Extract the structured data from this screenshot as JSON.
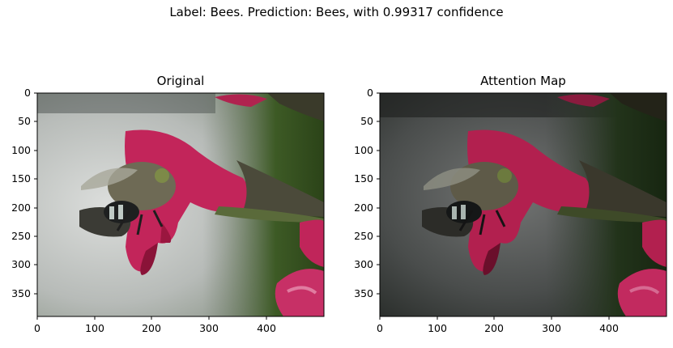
{
  "figure": {
    "suptitle": "Label: Bees. Prediction: Bees, with 0.99317 confidence"
  },
  "panels": [
    {
      "title": "Original",
      "x_ticks": [
        "0",
        "100",
        "200",
        "300",
        "400"
      ],
      "y_ticks": [
        "0",
        "50",
        "100",
        "150",
        "200",
        "250",
        "300",
        "350"
      ],
      "image": {
        "subject": "bee on pink salvia flower",
        "palette": {
          "background_light": "#d0d2d0",
          "background_mid": "#a9aeab",
          "dark_green": "#2f4a1d",
          "flower_pink": "#c2255a",
          "flower_dark": "#8a1338"
        }
      }
    },
    {
      "title": "Attention Map",
      "x_ticks": [
        "0",
        "100",
        "200",
        "300",
        "400"
      ],
      "y_ticks": [
        "0",
        "50",
        "100",
        "150",
        "200",
        "250",
        "300",
        "350"
      ],
      "image": {
        "subject": "same bee image darkened by attention overlay",
        "palette": {
          "background_light": "#6e706f",
          "background_mid": "#3f4241",
          "dark_green": "#1c2b12",
          "flower_pink": "#b2204f",
          "flower_dark": "#6a0f2b"
        }
      }
    }
  ]
}
